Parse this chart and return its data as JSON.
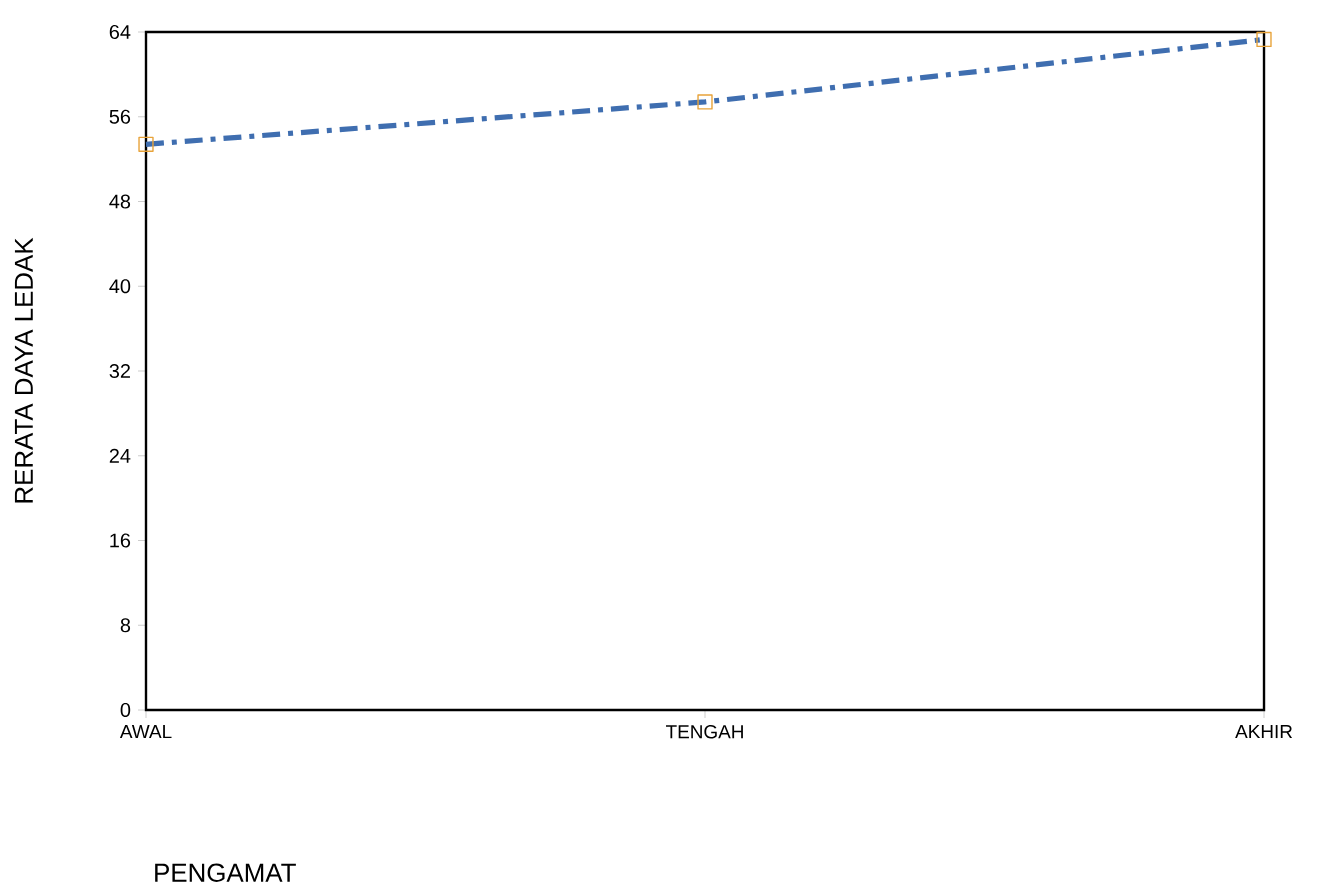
{
  "chart_data": {
    "type": "line",
    "xlabel": "PENGAMAT",
    "ylabel": "RERATA DAYA LEDAK",
    "categories": [
      "AWAL",
      "TENGAH",
      "AKHIR"
    ],
    "series": [
      {
        "color": "#3f6eb0",
        "values": [
          53.4,
          57.4,
          63.3
        ]
      }
    ],
    "ylim": [
      0,
      64
    ],
    "yticks": [
      0,
      8,
      16,
      24,
      32,
      40,
      48,
      56,
      64
    ],
    "marker": "square",
    "line_style": "dashdotted",
    "grid": false
  }
}
